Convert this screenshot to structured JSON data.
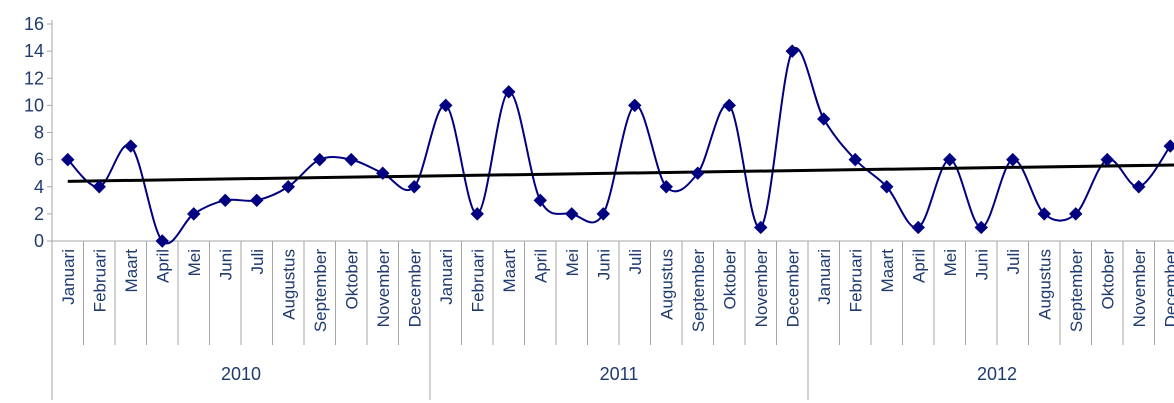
{
  "chart_data": {
    "type": "line",
    "title": "",
    "xlabel": "",
    "ylabel": "",
    "ylim": [
      0,
      16
    ],
    "yticks": [
      0,
      2,
      4,
      6,
      8,
      10,
      12,
      14,
      16
    ],
    "grid": false,
    "legend": "none",
    "categories": [
      "Januari",
      "Februari",
      "Maart",
      "April",
      "Mei",
      "Juni",
      "Juli",
      "Augustus",
      "September",
      "Oktober",
      "November",
      "December",
      "Januari",
      "Februari",
      "Maart",
      "April",
      "Mei",
      "Juni",
      "Juli",
      "Augustus",
      "September",
      "Oktober",
      "November",
      "December",
      "Januari",
      "Februari",
      "Maart",
      "April",
      "Mei",
      "Juni",
      "Juli",
      "Augustus",
      "September",
      "Oktober",
      "November",
      "December"
    ],
    "groups": [
      {
        "label": "2010",
        "count": 12
      },
      {
        "label": "2011",
        "count": 12
      },
      {
        "label": "2012",
        "count": 12
      }
    ],
    "series": [
      {
        "values": [
          6,
          4,
          7,
          0,
          2,
          3,
          3,
          4,
          6,
          6,
          5,
          4,
          10,
          2,
          11,
          3,
          2,
          2,
          10,
          4,
          5,
          10,
          1,
          14,
          9,
          6,
          4,
          1,
          6,
          1,
          6,
          2,
          2,
          6,
          4,
          7
        ],
        "color": "#000080",
        "marker": "diamond",
        "smooth": true
      }
    ],
    "trendline": {
      "type": "linear",
      "start_value": 4.4,
      "end_value": 5.6,
      "color": "#000000"
    }
  }
}
